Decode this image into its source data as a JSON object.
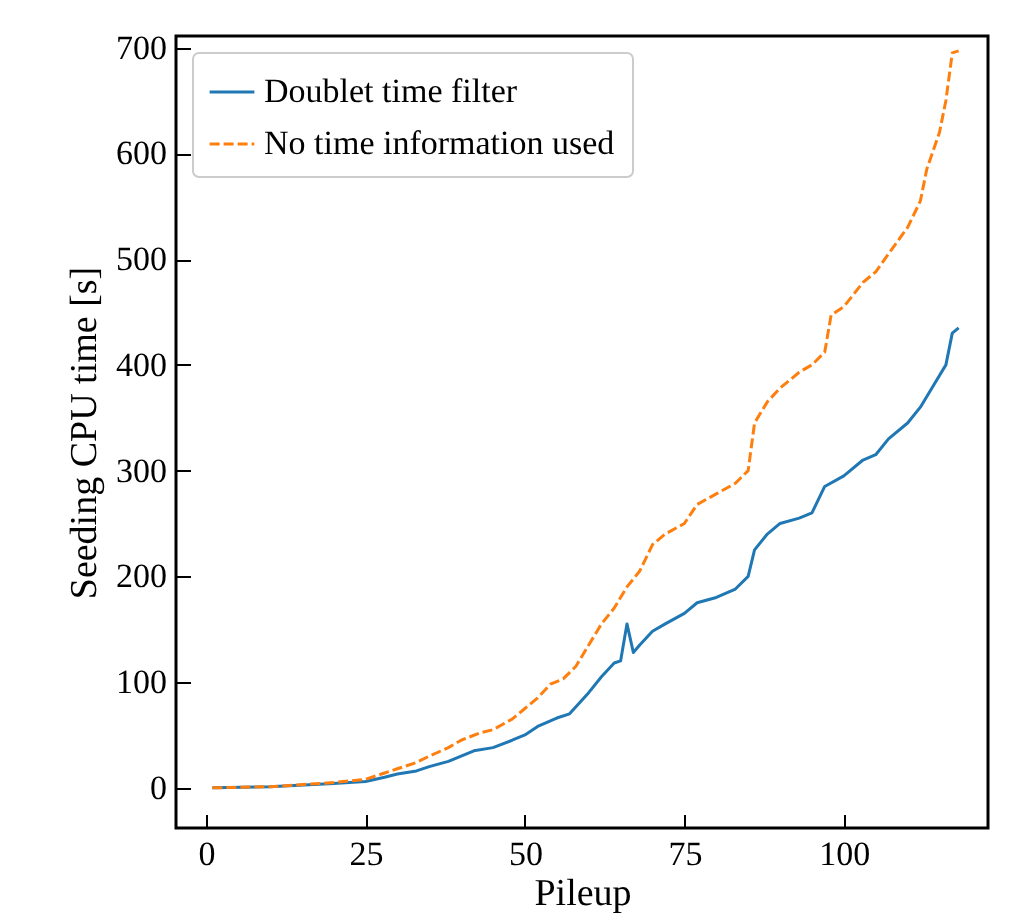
{
  "chart_data": {
    "type": "line",
    "xlabel": "Pileup",
    "ylabel": "Seeding CPU time [s]",
    "xlim": [
      -4.7,
      122.6
    ],
    "ylim": [
      -38,
      711
    ],
    "xticks": [
      0,
      25,
      50,
      75,
      100
    ],
    "yticks": [
      0,
      100,
      200,
      300,
      400,
      500,
      600,
      700
    ],
    "grid": false,
    "legend": "top left",
    "marker": "none",
    "series": [
      {
        "name": "Doublet time filter",
        "color": "#1f77b4",
        "line_style": "solid",
        "x": [
          1,
          10,
          20,
          25,
          28,
          30,
          33,
          35,
          38,
          40,
          42,
          45,
          48,
          50,
          52,
          55,
          57,
          60,
          62,
          64,
          65,
          66,
          67,
          68,
          70,
          72,
          75,
          77,
          80,
          83,
          85,
          86,
          88,
          90,
          93,
          95,
          97,
          100,
          103,
          105,
          107,
          110,
          112,
          114,
          116,
          117,
          118
        ],
        "values": [
          0,
          1,
          4,
          6,
          10,
          13,
          16,
          20,
          25,
          30,
          35,
          38,
          45,
          50,
          58,
          66,
          70,
          90,
          105,
          118,
          120,
          155,
          128,
          135,
          148,
          155,
          165,
          175,
          180,
          188,
          200,
          225,
          240,
          250,
          255,
          260,
          285,
          295,
          310,
          315,
          330,
          345,
          360,
          380,
          400,
          430,
          435
        ]
      },
      {
        "name": "No time information used",
        "color": "#ff7f0e",
        "line_style": "dashed",
        "x": [
          1,
          10,
          20,
          25,
          28,
          30,
          33,
          35,
          38,
          40,
          43,
          45,
          48,
          50,
          52,
          54,
          56,
          58,
          60,
          62,
          64,
          66,
          68,
          70,
          72,
          75,
          77,
          80,
          83,
          85,
          86,
          88,
          90,
          93,
          95,
          97,
          98,
          100,
          103,
          105,
          107,
          110,
          112,
          113,
          115,
          116,
          117,
          118
        ],
        "values": [
          0,
          1,
          5,
          8,
          14,
          18,
          24,
          30,
          38,
          45,
          52,
          55,
          65,
          75,
          85,
          98,
          103,
          115,
          135,
          155,
          170,
          190,
          205,
          230,
          240,
          250,
          268,
          278,
          288,
          300,
          345,
          365,
          378,
          393,
          400,
          412,
          447,
          455,
          478,
          488,
          505,
          530,
          555,
          585,
          620,
          650,
          695,
          697
        ]
      }
    ]
  }
}
